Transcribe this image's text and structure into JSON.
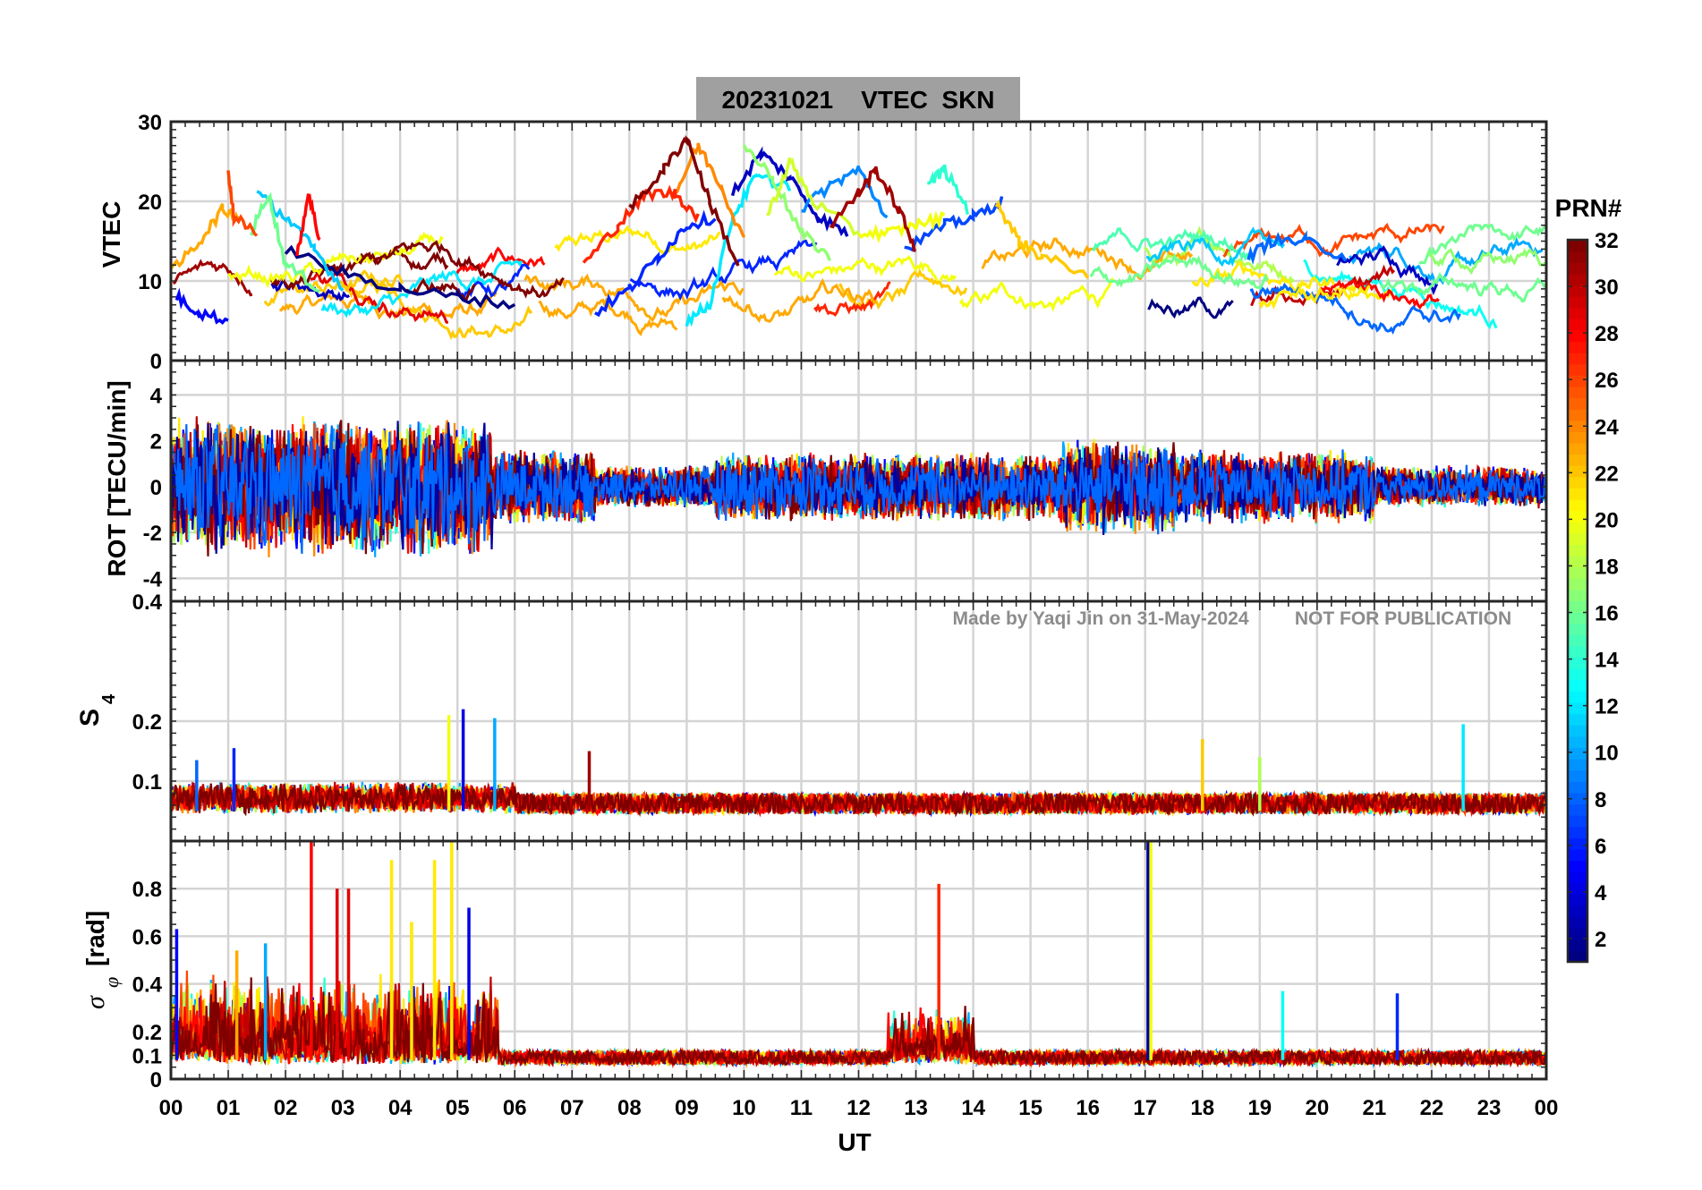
{
  "chart_data": {
    "type": "line",
    "title": "20231021    VTEC  SKN",
    "xlabel": "UT",
    "x_range": [
      0,
      24
    ],
    "x_tick_labels": [
      "00",
      "01",
      "02",
      "03",
      "04",
      "05",
      "06",
      "07",
      "08",
      "09",
      "10",
      "11",
      "12",
      "13",
      "14",
      "15",
      "16",
      "17",
      "18",
      "19",
      "20",
      "21",
      "22",
      "23",
      "00"
    ],
    "watermark": {
      "author": "Made by Yaqi Jin on 31-May-2024",
      "notice": "NOT FOR PUBLICATION"
    },
    "colorbar": {
      "label": "PRN#",
      "range": [
        1,
        32
      ],
      "colormap": "jet",
      "tick_labels": [
        "2",
        "4",
        "6",
        "8",
        "10",
        "12",
        "14",
        "16",
        "18",
        "20",
        "22",
        "24",
        "26",
        "28",
        "30",
        "32"
      ]
    },
    "panels": [
      {
        "id": "vtec",
        "ylabel": "VTEC",
        "ylim": [
          0,
          30
        ],
        "yticks": [
          0,
          10,
          20,
          30
        ],
        "ytick_labels": [
          "0",
          "10",
          "20",
          "30"
        ],
        "series": [
          {
            "prn": 1,
            "points": [
              [
                2.0,
                14
              ],
              [
                3.0,
                11
              ],
              [
                4.0,
                9
              ],
              [
                5.0,
                8
              ],
              [
                6.0,
                7
              ]
            ]
          },
          {
            "prn": 3,
            "points": [
              [
                9.8,
                21
              ],
              [
                10.3,
                26
              ],
              [
                10.8,
                23
              ],
              [
                11.3,
                18
              ],
              [
                11.8,
                16
              ]
            ]
          },
          {
            "prn": 5,
            "points": [
              [
                0.1,
                8
              ],
              [
                0.5,
                6
              ],
              [
                1.0,
                5
              ]
            ]
          },
          {
            "prn": 6,
            "points": [
              [
                7.4,
                6
              ],
              [
                8.0,
                9
              ],
              [
                8.5,
                13
              ],
              [
                9.0,
                17
              ],
              [
                9.5,
                18
              ]
            ]
          },
          {
            "prn": 7,
            "points": [
              [
                12.8,
                14
              ],
              [
                13.5,
                17
              ],
              [
                14.0,
                18
              ],
              [
                14.5,
                20
              ]
            ]
          },
          {
            "prn": 8,
            "points": [
              [
                18.8,
                13
              ],
              [
                19.2,
                15
              ],
              [
                19.8,
                15
              ],
              [
                20.5,
                13
              ]
            ]
          },
          {
            "prn": 9,
            "points": [
              [
                11.0,
                19
              ],
              [
                11.5,
                22
              ],
              [
                12.0,
                24
              ],
              [
                12.5,
                18
              ]
            ]
          },
          {
            "prn": 11,
            "points": [
              [
                1.5,
                21
              ],
              [
                2.0,
                18
              ],
              [
                2.5,
                14
              ],
              [
                3.0,
                9
              ]
            ]
          },
          {
            "prn": 12,
            "points": [
              [
                9.0,
                5
              ],
              [
                9.4,
                7
              ],
              [
                9.8,
                18
              ],
              [
                10.2,
                23
              ],
              [
                10.8,
                22
              ]
            ]
          },
          {
            "prn": 14,
            "points": [
              [
                13.2,
                22
              ],
              [
                13.5,
                24
              ],
              [
                13.9,
                19
              ]
            ]
          },
          {
            "prn": 16,
            "points": [
              [
                1.4,
                16
              ],
              [
                1.7,
                21
              ],
              [
                2.0,
                12
              ],
              [
                2.6,
                9
              ]
            ]
          },
          {
            "prn": 17,
            "points": [
              [
                10.0,
                27
              ],
              [
                10.5,
                23
              ],
              [
                11.0,
                16
              ],
              [
                11.5,
                13
              ]
            ]
          },
          {
            "prn": 19,
            "points": [
              [
                10.4,
                18
              ],
              [
                10.8,
                25
              ],
              [
                11.2,
                20
              ],
              [
                12.0,
                16
              ]
            ]
          },
          {
            "prn": 20,
            "points": [
              [
                12.0,
                16
              ],
              [
                12.5,
                16
              ],
              [
                13.0,
                17
              ],
              [
                13.5,
                18
              ]
            ]
          },
          {
            "prn": 22,
            "points": [
              [
                14.4,
                20
              ],
              [
                14.8,
                15
              ],
              [
                15.2,
                13
              ],
              [
                16.0,
                11
              ]
            ]
          },
          {
            "prn": 23,
            "points": [
              [
                0.0,
                11
              ],
              [
                0.5,
                15
              ],
              [
                0.9,
                19
              ],
              [
                1.2,
                18
              ]
            ]
          },
          {
            "prn": 24,
            "points": [
              [
                8.8,
                21
              ],
              [
                9.2,
                27
              ],
              [
                9.6,
                22
              ],
              [
                10.0,
                15
              ]
            ]
          },
          {
            "prn": 26,
            "points": [
              [
                1.0,
                24
              ],
              [
                1.1,
                18
              ],
              [
                1.5,
                16
              ]
            ]
          },
          {
            "prn": 27,
            "points": [
              [
                7.2,
                12
              ],
              [
                7.8,
                17
              ],
              [
                8.3,
                21
              ],
              [
                8.8,
                21
              ],
              [
                9.2,
                18
              ]
            ]
          },
          {
            "prn": 28,
            "points": [
              [
                2.2,
                13
              ],
              [
                2.4,
                21
              ],
              [
                2.6,
                15
              ]
            ]
          },
          {
            "prn": 31,
            "points": [
              [
                11.5,
                17
              ],
              [
                12.0,
                21
              ],
              [
                12.3,
                24
              ],
              [
                12.7,
                19
              ],
              [
                13.0,
                14
              ]
            ]
          },
          {
            "prn": 32,
            "points": [
              [
                8.0,
                19
              ],
              [
                8.6,
                24
              ],
              [
                9.0,
                28
              ],
              [
                9.4,
                20
              ],
              [
                9.9,
                12
              ]
            ]
          }
        ]
      },
      {
        "id": "rot",
        "ylabel": "ROT [TECU/min]",
        "ylim": [
          -5,
          5.5
        ],
        "yticks": [
          -4,
          -2,
          0,
          2,
          4
        ],
        "ytick_labels": [
          "-4",
          "-2",
          "0",
          "2",
          "4"
        ]
      },
      {
        "id": "s4",
        "ylabel": "S4",
        "ylim": [
          0,
          0.4
        ],
        "yticks": [
          0.1,
          0.2,
          0.4
        ],
        "ytick_labels": [
          "0.1",
          "0.2",
          "0.4"
        ],
        "spikes": [
          {
            "t": 0.45,
            "v": 0.135,
            "prn": 8
          },
          {
            "t": 1.1,
            "v": 0.155,
            "prn": 6
          },
          {
            "t": 4.85,
            "v": 0.21,
            "prn": 20
          },
          {
            "t": 5.1,
            "v": 0.22,
            "prn": 4
          },
          {
            "t": 5.65,
            "v": 0.205,
            "prn": 10
          },
          {
            "t": 7.3,
            "v": 0.15,
            "prn": 31
          },
          {
            "t": 18.0,
            "v": 0.17,
            "prn": 22
          },
          {
            "t": 19.0,
            "v": 0.14,
            "prn": 18
          },
          {
            "t": 22.55,
            "v": 0.195,
            "prn": 12
          }
        ]
      },
      {
        "id": "sigma_phi",
        "ylabel": "σ_φ [rad]",
        "ylim": [
          0,
          1.0
        ],
        "yticks": [
          0,
          0.1,
          0.2,
          0.4,
          0.6,
          0.8
        ],
        "ytick_labels": [
          "0",
          "0.1",
          "0.2",
          "0.4",
          "0.6",
          "0.8"
        ],
        "spikes": [
          {
            "t": 0.1,
            "v": 0.63,
            "prn": 5
          },
          {
            "t": 1.15,
            "v": 0.54,
            "prn": 23
          },
          {
            "t": 1.65,
            "v": 0.57,
            "prn": 10
          },
          {
            "t": 2.45,
            "v": 1.0,
            "prn": 28
          },
          {
            "t": 2.9,
            "v": 0.8,
            "prn": 29
          },
          {
            "t": 3.1,
            "v": 0.8,
            "prn": 29
          },
          {
            "t": 3.85,
            "v": 0.92,
            "prn": 21
          },
          {
            "t": 4.2,
            "v": 0.66,
            "prn": 21
          },
          {
            "t": 4.6,
            "v": 0.92,
            "prn": 21
          },
          {
            "t": 4.9,
            "v": 1.0,
            "prn": 21
          },
          {
            "t": 5.2,
            "v": 0.72,
            "prn": 4
          },
          {
            "t": 13.4,
            "v": 0.82,
            "prn": 27
          },
          {
            "t": 17.05,
            "v": 1.0,
            "prn": 2
          },
          {
            "t": 17.1,
            "v": 1.0,
            "prn": 20
          },
          {
            "t": 19.4,
            "v": 0.37,
            "prn": 13
          },
          {
            "t": 21.4,
            "v": 0.36,
            "prn": 6
          }
        ]
      }
    ]
  }
}
